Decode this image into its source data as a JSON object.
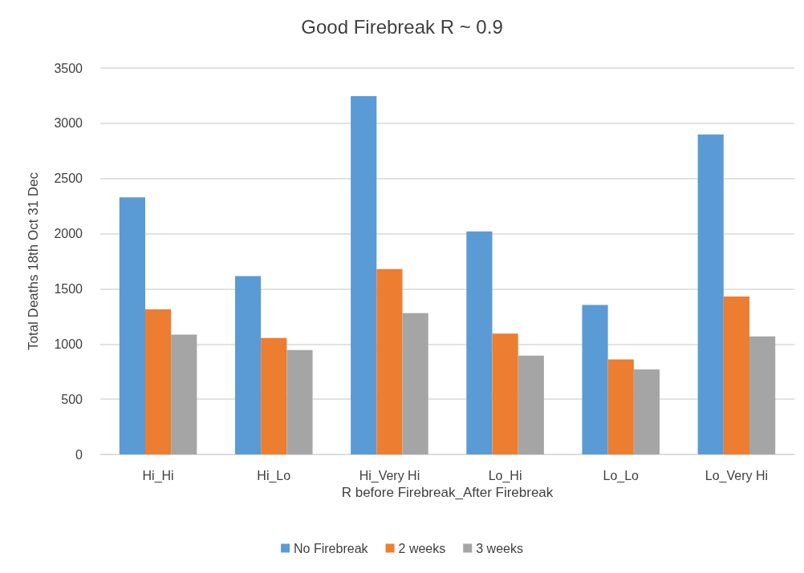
{
  "chart_data": {
    "type": "bar",
    "title": "Good Firebreak R ~ 0.9",
    "xlabel": "R before Firebreak_After Firebreak",
    "ylabel": "Total Deaths 18th Oct 31 Dec",
    "categories": [
      "Hi_Hi",
      "Hi_Lo",
      "Hi_Very Hi",
      "Lo_Hi",
      "Lo_Lo",
      "Lo_Very Hi"
    ],
    "series": [
      {
        "name": "No Firebreak",
        "color": "#5b9bd5",
        "values": [
          2330,
          1615,
          3245,
          2020,
          1355,
          2900
        ]
      },
      {
        "name": "2 weeks",
        "color": "#ed7d31",
        "values": [
          1315,
          1055,
          1680,
          1095,
          860,
          1430
        ]
      },
      {
        "name": "3 weeks",
        "color": "#a5a5a5",
        "values": [
          1085,
          945,
          1280,
          895,
          770,
          1070
        ]
      }
    ],
    "ylim": [
      0,
      3500
    ],
    "yticks": [
      0,
      500,
      1000,
      1500,
      2000,
      2500,
      3000,
      3500
    ],
    "grid": "y",
    "legend": "bottom"
  }
}
